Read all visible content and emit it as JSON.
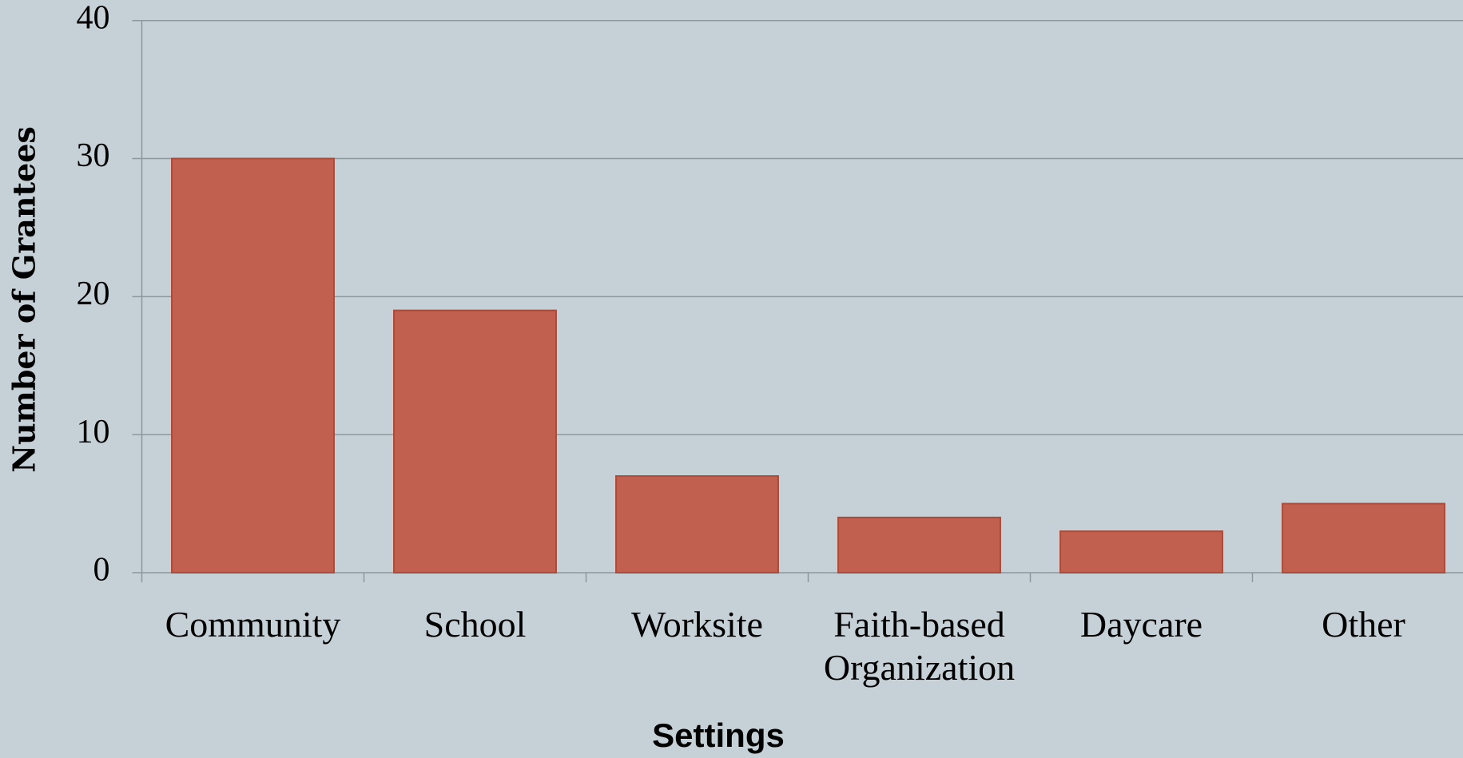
{
  "chart_data": {
    "type": "bar",
    "x_label": "Settings",
    "y_label": "Number of Grantees",
    "categories": [
      "Community",
      "School",
      "Worksite",
      "Faith-based Organization",
      "Daycare",
      "Other"
    ],
    "values": [
      30,
      19,
      7,
      4,
      3,
      5
    ],
    "color": "#c2604f",
    "ylim": [
      0,
      40
    ],
    "yticks": [
      0,
      10,
      20,
      30,
      40
    ],
    "grid": true
  }
}
